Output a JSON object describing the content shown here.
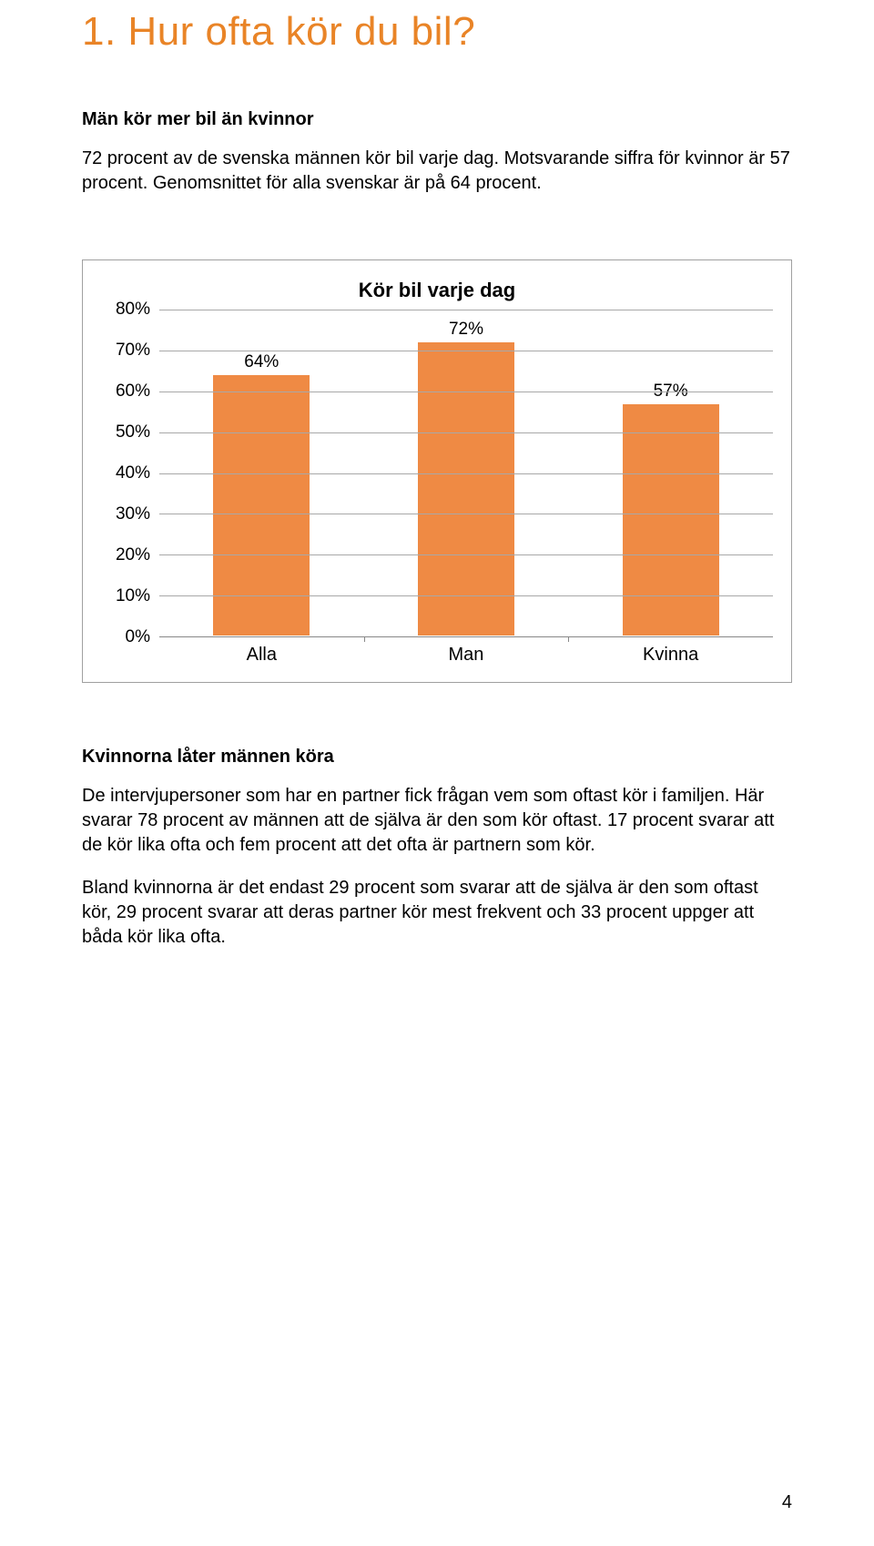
{
  "title": "1. Hur ofta kör du bil?",
  "section1": {
    "heading": "Män kör mer bil än kvinnor",
    "paragraph": "72 procent av de svenska männen kör bil varje dag. Motsvarande siffra för kvinnor är 57 procent. Genomsnittet för alla svenskar är på 64 procent."
  },
  "chart": {
    "type": "bar",
    "title": "Kör bil varje dag",
    "categories": [
      "Alla",
      "Man",
      "Kvinna"
    ],
    "values": [
      64,
      72,
      57
    ],
    "value_labels": [
      "64%",
      "72%",
      "57%"
    ],
    "bar_color": "#ef8a44",
    "bar_border_color": "#ffffff",
    "bar_width_pct": 48,
    "y_ticks": [
      "80%",
      "70%",
      "60%",
      "50%",
      "40%",
      "30%",
      "20%",
      "10%",
      "0%"
    ],
    "ymax": 80,
    "grid_color": "#a8a8a8",
    "axis_color": "#888888",
    "title_fontsize": 22,
    "tick_fontsize": 19,
    "background_color": "#ffffff"
  },
  "section2": {
    "heading": "Kvinnorna låter männen köra",
    "paragraph1": "De intervjupersoner som har en partner fick frågan vem som oftast kör i familjen. Här svarar 78 procent av männen att de själva är den som kör oftast. 17 procent svarar att de kör lika ofta och fem procent att det ofta är partnern som kör.",
    "paragraph2": "Bland kvinnorna är det endast 29 procent som svarar att de själva är den som oftast kör, 29 procent svarar att deras partner kör mest frekvent och 33 procent uppger att båda kör lika ofta."
  },
  "page_number": "4"
}
